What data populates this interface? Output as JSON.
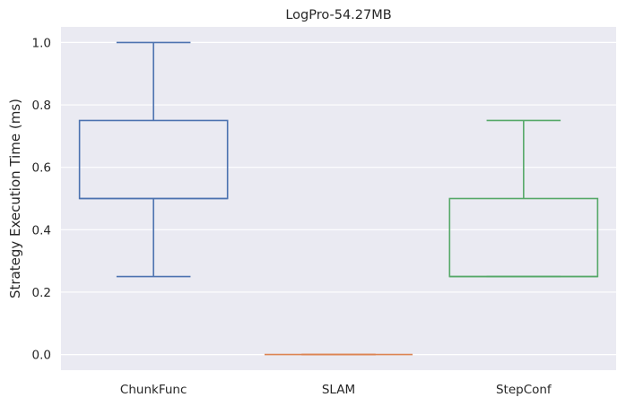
{
  "chart_data": {
    "type": "boxplot",
    "title": "LogPro-54.27MB",
    "xlabel": "",
    "ylabel": "Strategy Execution Time (ms)",
    "ylim": [
      -0.05,
      1.05
    ],
    "yticks": [
      "0.0",
      "0.2",
      "0.4",
      "0.6",
      "0.8",
      "1.0"
    ],
    "grid": true,
    "categories": [
      "ChunkFunc",
      "SLAM",
      "StepConf"
    ],
    "series": [
      {
        "category": "ChunkFunc",
        "color": "#4c72b0",
        "whislo": 0.25,
        "q1": 0.5,
        "med": 0.5,
        "q3": 0.75,
        "whishi": 1.0
      },
      {
        "category": "SLAM",
        "color": "#dd8452",
        "whislo": 0.0,
        "q1": 0.0,
        "med": 0.0,
        "q3": 0.0,
        "whishi": 0.0
      },
      {
        "category": "StepConf",
        "color": "#55a868",
        "whislo": 0.25,
        "q1": 0.25,
        "med": 0.25,
        "q3": 0.5,
        "whishi": 0.75
      }
    ],
    "background_color": "#eaeaf2",
    "grid_color": "#ffffff"
  }
}
